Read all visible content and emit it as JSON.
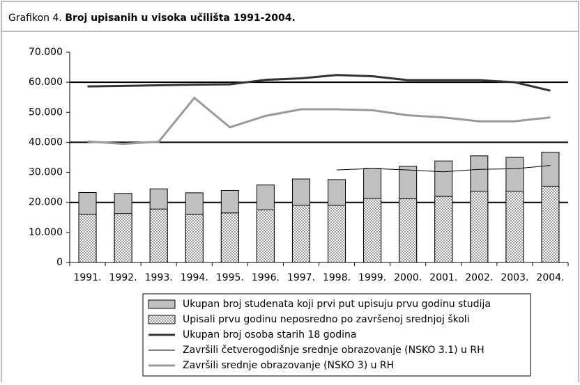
{
  "chart_data": {
    "type": "bar-line",
    "title_prefix": "Grafikon 4.",
    "title": "Broj upisanih u visoka učilišta 1991-2004.",
    "categories": [
      "1991.",
      "1992.",
      "1993.",
      "1994.",
      "1995.",
      "1996.",
      "1997.",
      "1998.",
      "1999.",
      "2000.",
      "2001.",
      "2002.",
      "2003.",
      "2004."
    ],
    "ylim": [
      0,
      70000
    ],
    "yticks": [
      0,
      {
        "value": 10000,
        "label": "10.000"
      },
      {
        "value": 20000,
        "label": "20.000"
      },
      {
        "value": 30000,
        "label": "30.000"
      },
      {
        "value": 40000,
        "label": "40.000"
      },
      {
        "value": 50000,
        "label": "50.000"
      },
      {
        "value": 60000,
        "label": "60.000"
      },
      {
        "value": 70000,
        "label": "70.000"
      }
    ],
    "grid_lines": [
      20000,
      40000,
      60000
    ],
    "series": [
      {
        "name": "Ukupan broj studenata koji prvi put upisuju prvu godinu studija",
        "style": "bar",
        "color": "#c0c0c0",
        "values": [
          23300,
          23000,
          24500,
          23200,
          24000,
          25800,
          27800,
          27600,
          31300,
          32000,
          33800,
          35500,
          35000,
          36700
        ]
      },
      {
        "name": "Upisali prvu godinu neposredno po završenoj srednjoj školi",
        "style": "dotted-bar",
        "color": "#808080",
        "values": [
          16000,
          16300,
          17800,
          16000,
          16500,
          17500,
          19000,
          19000,
          21300,
          21200,
          22000,
          23700,
          23700,
          25400
        ]
      },
      {
        "name": "Ukupan broj osoba starih 18 godina",
        "style": "thick-line",
        "color": "#333333",
        "values": [
          58600,
          58800,
          59000,
          59200,
          59300,
          60800,
          61300,
          62400,
          62000,
          60700,
          60700,
          60700,
          60000,
          57200
        ]
      },
      {
        "name": "Završili četverogodišnje srednje obrazovanje (NSKO 3.1) u RH",
        "style": "thin-line",
        "color": "#000000",
        "values": [
          null,
          null,
          null,
          null,
          null,
          null,
          null,
          30800,
          31300,
          30800,
          30200,
          31000,
          31200,
          32300
        ]
      },
      {
        "name": "Završili srednje obrazovanje (NSKO 3) u RH",
        "style": "thick-line",
        "color": "#999999",
        "values": [
          40300,
          39500,
          40200,
          54800,
          45000,
          48800,
          51000,
          51000,
          50700,
          49000,
          48300,
          47000,
          47000,
          48300
        ]
      }
    ]
  }
}
